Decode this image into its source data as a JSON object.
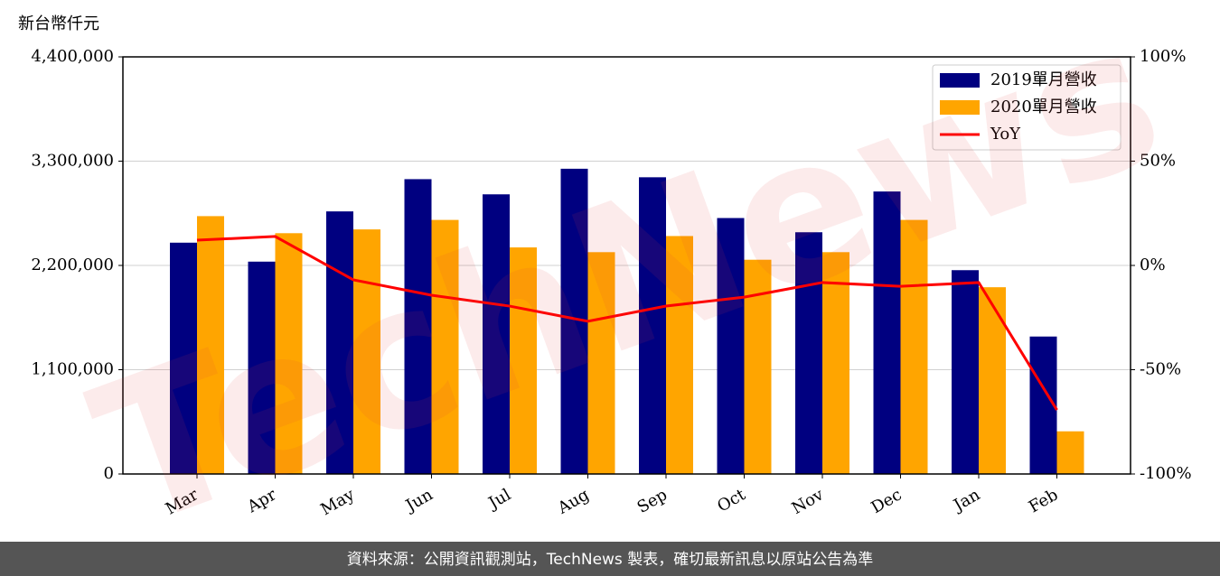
{
  "chart_data": {
    "type": "bar_line",
    "y_label": "新台幣仟元",
    "watermark": "TechNews",
    "footer": "資料來源：公開資訊觀測站，TechNews 製表，確切最新訊息以原站公告為準",
    "categories": [
      "Mar",
      "Apr",
      "May",
      "Jun",
      "Jul",
      "Aug",
      "Sep",
      "Oct",
      "Nov",
      "Dec",
      "Jan",
      "Feb"
    ],
    "series": [
      {
        "name": "2019單月營收",
        "color": "#000080",
        "kind": "bar",
        "values": [
          2440000,
          2240000,
          2770000,
          3110000,
          2950000,
          3220000,
          3130000,
          2700000,
          2550000,
          2980000,
          2150000,
          1450000
        ]
      },
      {
        "name": "2020單月營收",
        "color": "#ffa500",
        "kind": "bar",
        "values": [
          2720000,
          2540000,
          2580000,
          2680000,
          2390000,
          2340000,
          2510000,
          2260000,
          2340000,
          2680000,
          1970000,
          450000
        ]
      },
      {
        "name": "YoY",
        "color": "#ff0000",
        "kind": "line",
        "axis": "y2",
        "values": [
          12.1,
          13.9,
          -6.9,
          -14.3,
          -19.5,
          -26.8,
          -19.5,
          -15.2,
          -8.2,
          -10,
          -8.2,
          -69.3
        ]
      }
    ],
    "ylim": [
      0,
      4400000
    ],
    "yticks": [
      0,
      {
        "value": 1100000,
        "label": "1,100,000"
      },
      {
        "value": 2200000,
        "label": "2,200,000"
      },
      {
        "value": 3300000,
        "label": "3,300,000"
      },
      {
        "value": 4400000,
        "label": "4,400,000"
      }
    ],
    "y2lim": [
      -100,
      100
    ],
    "y2ticks": [
      {
        "value": -100,
        "label": "-100%"
      },
      {
        "value": -50,
        "label": "-50%"
      },
      {
        "value": 0,
        "label": "0%"
      },
      {
        "value": 50,
        "label": "50%"
      },
      {
        "value": 100,
        "label": "100%"
      }
    ],
    "grid": true,
    "legend": "upper right"
  }
}
